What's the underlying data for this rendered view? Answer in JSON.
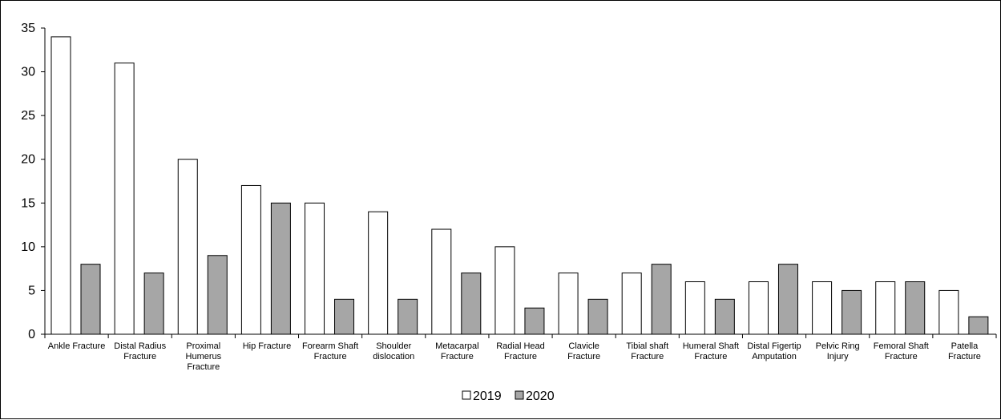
{
  "chart_data": {
    "type": "bar",
    "title": "",
    "xlabel": "",
    "ylabel": "",
    "ylim": [
      0,
      35
    ],
    "yticks": [
      0,
      5,
      10,
      15,
      20,
      25,
      30,
      35
    ],
    "grid": false,
    "legend_position": "bottom-center",
    "categories": [
      "Ankle Fracture",
      "Distal Radius Fracture",
      "Proximal Humerus Fracture",
      "Hip Fracture",
      "Forearm Shaft Fracture",
      "Shoulder dislocation",
      "Metacarpal Fracture",
      "Radial Head Fracture",
      "Clavicle Fracture",
      "Tibial shaft Fracture",
      "Humeral Shaft Fracture",
      "Distal Figertip Amputation",
      "Pelvic Ring Injury",
      "Femoral Shaft Fracture",
      "Patella Fracture"
    ],
    "category_label_lines": [
      [
        "Ankle Fracture"
      ],
      [
        "Distal Radius",
        "Fracture"
      ],
      [
        "Proximal",
        "Humerus",
        "Fracture"
      ],
      [
        "Hip Fracture"
      ],
      [
        "Forearm Shaft",
        "Fracture"
      ],
      [
        "Shoulder",
        "dislocation"
      ],
      [
        "Metacarpal",
        "Fracture"
      ],
      [
        "Radial Head",
        "Fracture"
      ],
      [
        "Clavicle",
        "Fracture"
      ],
      [
        "Tibial shaft",
        "Fracture"
      ],
      [
        "Humeral Shaft",
        "Fracture"
      ],
      [
        "Distal Figertip",
        "Amputation"
      ],
      [
        "Pelvic Ring",
        "Injury"
      ],
      [
        "Femoral Shaft",
        "Fracture"
      ],
      [
        "Patella",
        "Fracture"
      ]
    ],
    "series": [
      {
        "name": "2019",
        "color": "#ffffff",
        "values": [
          34,
          31,
          20,
          17,
          15,
          14,
          12,
          10,
          7,
          7,
          6,
          6,
          6,
          6,
          5
        ]
      },
      {
        "name": "2020",
        "color": "#a6a6a6",
        "values": [
          8,
          7,
          9,
          15,
          4,
          4,
          7,
          3,
          4,
          8,
          4,
          8,
          5,
          6,
          2
        ]
      }
    ]
  }
}
